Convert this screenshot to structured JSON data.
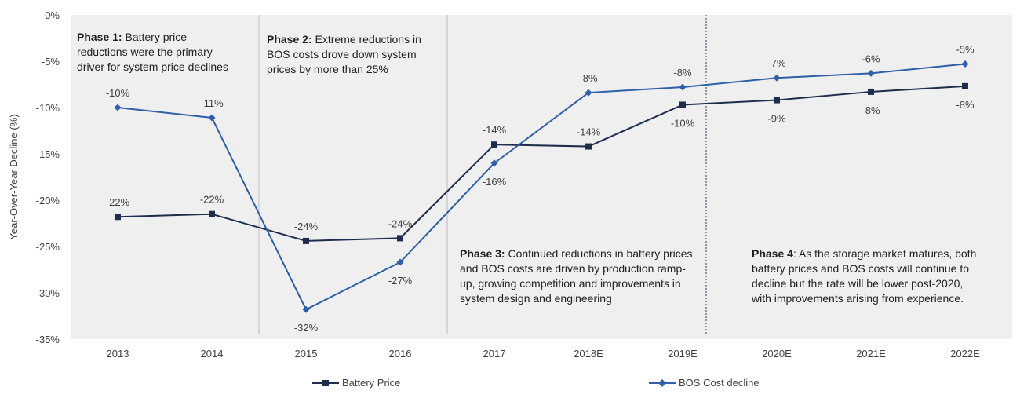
{
  "chart_data": {
    "type": "line",
    "ylabel": "Year-Over-Year Decline (%)",
    "ylim": [
      -35,
      0
    ],
    "yticks": [
      "0%",
      "-5%",
      "-10%",
      "-15%",
      "-20%",
      "-25%",
      "-30%",
      "-35%"
    ],
    "categories": [
      "2013",
      "2014",
      "2015",
      "2016",
      "2017",
      "2018E",
      "2019E",
      "2020E",
      "2021E",
      "2022E"
    ],
    "legend_position": "bottom",
    "grid": false,
    "series": [
      {
        "name": "Battery Price",
        "color": "#1f2d4d",
        "marker": "square",
        "values": [
          -21.8,
          -21.5,
          -24.4,
          -24.1,
          -14.0,
          -14.2,
          -9.7,
          -9.2,
          -8.3,
          -7.7
        ],
        "labels": [
          "-22%",
          "-22%",
          "-24%",
          "-24%",
          "-14%",
          "-14%",
          "-10%",
          "-9%",
          "-8%",
          "-8%"
        ]
      },
      {
        "name": "BOS Cost decline",
        "color": "#2e5fa8",
        "marker": "diamond",
        "values": [
          -10.0,
          -11.1,
          -31.8,
          -26.7,
          -16.0,
          -8.4,
          -7.8,
          -6.8,
          -6.3,
          -5.3
        ],
        "labels": [
          "-10%",
          "-11%",
          "-32%",
          "-27%",
          "-16%",
          "-8%",
          "-8%",
          "-7%",
          "-6%",
          "-5%"
        ]
      }
    ],
    "annotations": [
      {
        "title": "Phase 1:",
        "lines": [
          "Battery price",
          "reductions were the primary",
          "driver for system price declines"
        ]
      },
      {
        "title": "Phase 2:",
        "lines": [
          "Extreme reductions in",
          "BOS costs drove down system",
          "prices by more than 25%"
        ]
      },
      {
        "title": "Phase 3:",
        "lines": [
          "Continued reductions in battery prices",
          "and BOS costs are driven by production ramp-",
          "up, growing competition and improvements in",
          "system design and engineering"
        ]
      },
      {
        "title": "Phase 4",
        "lines": [
          ": As the storage market matures, both",
          "battery prices and BOS costs will continue to",
          "decline but the rate will be lower post-2020,",
          "with improvements arising from experience."
        ]
      }
    ]
  }
}
